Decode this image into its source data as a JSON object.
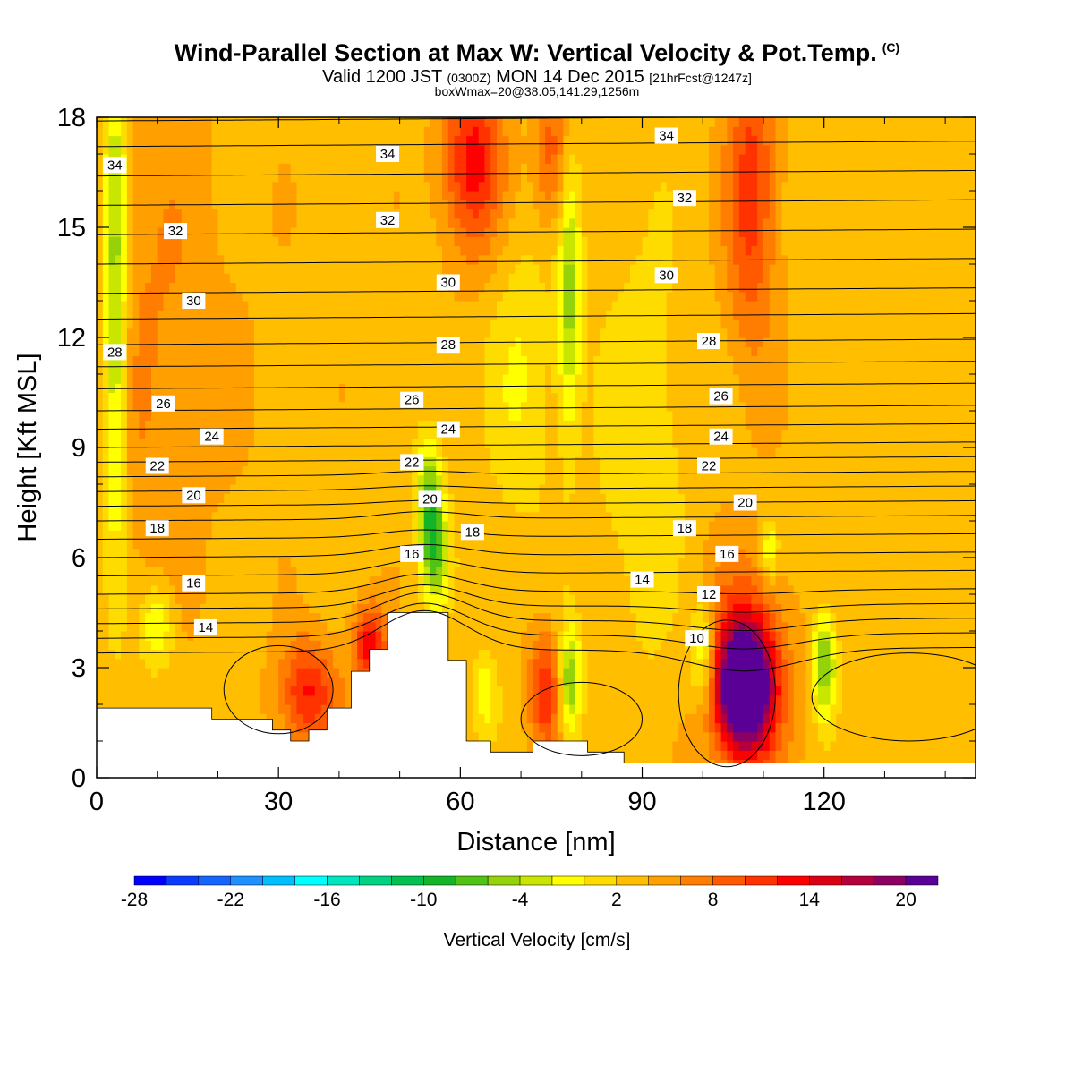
{
  "header": {
    "title": "Wind-Parallel Section at Max W: Vertical Velocity & Pot.Temp.",
    "copyright": "(C)",
    "valid_prefix": "Valid 1200 JST",
    "valid_utc": "(0300Z)",
    "valid_date": "MON 14 Dec 2015",
    "forecast": "[21hrFcst@1247z]",
    "box_info": "boxWmax=20@38.05,141.29,1256m"
  },
  "chart_data": {
    "type": "heatmap",
    "xlabel": "Distance [nm]",
    "ylabel": "Height [Kft MSL]",
    "xlim": [
      0,
      145
    ],
    "ylim": [
      0,
      18
    ],
    "x_ticks": [
      "0",
      "30",
      "60",
      "90",
      "120"
    ],
    "y_ticks": [
      "0",
      "3",
      "6",
      "9",
      "12",
      "15",
      "18"
    ],
    "colorbar": {
      "label": "Vertical Velocity [cm/s]",
      "range": [
        -28,
        22
      ],
      "step": 2,
      "tick_labels": [
        "-28",
        "-22",
        "-16",
        "-10",
        "-4",
        "2",
        "8",
        "14",
        "20"
      ],
      "colors": [
        "#0000ff",
        "#0a3cff",
        "#1464ff",
        "#1e90ff",
        "#00bfff",
        "#00ffff",
        "#00e6be",
        "#00d282",
        "#00c050",
        "#14b428",
        "#50c314",
        "#96d20a",
        "#c8e600",
        "#ffff00",
        "#ffdc00",
        "#ffbe00",
        "#ffa000",
        "#ff7d00",
        "#ff5a00",
        "#ff3200",
        "#ff0000",
        "#dc0014",
        "#b4003c",
        "#8c0064",
        "#5a0096"
      ]
    },
    "terrain_kft": [
      [
        0,
        1.9
      ],
      [
        19,
        1.9
      ],
      [
        19,
        1.6
      ],
      [
        29,
        1.6
      ],
      [
        29,
        1.3
      ],
      [
        32,
        1.3
      ],
      [
        32,
        1.0
      ],
      [
        35,
        1.0
      ],
      [
        35,
        1.3
      ],
      [
        38,
        1.3
      ],
      [
        38,
        1.9
      ],
      [
        42,
        1.9
      ],
      [
        42,
        2.9
      ],
      [
        45,
        2.9
      ],
      [
        45,
        3.5
      ],
      [
        48,
        3.5
      ],
      [
        48,
        4.5
      ],
      [
        58,
        4.5
      ],
      [
        58,
        3.2
      ],
      [
        61,
        3.2
      ],
      [
        61,
        1.0
      ],
      [
        65,
        1.0
      ],
      [
        65,
        0.7
      ],
      [
        72,
        0.7
      ],
      [
        72,
        1.0
      ],
      [
        81,
        1.0
      ],
      [
        81,
        0.7
      ],
      [
        87,
        0.7
      ],
      [
        87,
        0.4
      ],
      [
        145,
        0.4
      ]
    ],
    "w_features": [
      {
        "x": 107,
        "z": 2.5,
        "sx": 3,
        "sz": 1.1,
        "w": 24
      },
      {
        "x": 107,
        "z": 2.8,
        "sx": 5,
        "sz": 2.2,
        "w": 8
      },
      {
        "x": 62,
        "z": 16.8,
        "sx": 3.5,
        "sz": 1.8,
        "w": 10
      },
      {
        "x": 108,
        "z": 16,
        "sx": 3,
        "sz": 3,
        "w": 8
      },
      {
        "x": 35,
        "z": 2.3,
        "sx": 3.5,
        "sz": 1,
        "w": 9
      },
      {
        "x": 45,
        "z": 3.6,
        "sx": 2,
        "sz": 0.8,
        "w": 10
      },
      {
        "x": 74,
        "z": 2.4,
        "sx": 2,
        "sz": 1.1,
        "w": 9
      },
      {
        "x": 75,
        "z": 17,
        "sx": 2,
        "sz": 1.5,
        "w": 6
      },
      {
        "x": 8,
        "z": 12,
        "sx": 10,
        "sz": 5,
        "w": 3
      },
      {
        "x": 3,
        "z": 13,
        "sx": 1.5,
        "sz": 5,
        "w": -10
      },
      {
        "x": 55,
        "z": 7.5,
        "sx": 1.5,
        "sz": 1.2,
        "w": -10
      },
      {
        "x": 56,
        "z": 6,
        "sx": 1.5,
        "sz": 1,
        "w": -7
      },
      {
        "x": 78,
        "z": 13,
        "sx": 1.3,
        "sz": 2.5,
        "w": -8
      },
      {
        "x": 78,
        "z": 2.6,
        "sx": 1.3,
        "sz": 1,
        "w": -10
      },
      {
        "x": 100,
        "z": 3.4,
        "sx": 1.6,
        "sz": 1,
        "w": -7
      },
      {
        "x": 120,
        "z": 3.1,
        "sx": 1.4,
        "sz": 1,
        "w": -10
      },
      {
        "x": 10,
        "z": 4.1,
        "sx": 2,
        "sz": 0.8,
        "w": -6
      },
      {
        "x": 111,
        "z": 6.2,
        "sx": 1,
        "sz": 0.6,
        "w": -6
      },
      {
        "x": 64,
        "z": 2.3,
        "sx": 1.5,
        "sz": 0.7,
        "w": -5
      },
      {
        "x": 90,
        "z": 9,
        "sx": 5,
        "sz": 4,
        "w": -3
      },
      {
        "x": 70,
        "z": 11,
        "sx": 4,
        "sz": 3,
        "w": -3
      }
    ],
    "isotherms": [
      {
        "z0": 3.4,
        "ridge": 4.5,
        "dip": -0.6
      },
      {
        "z0": 3.8,
        "ridge": 4.7,
        "dip": -0.4
      },
      {
        "z0": 4.2,
        "ridge": 5.0,
        "dip": -0.3
      },
      {
        "z0": 4.6,
        "ridge": 5.2,
        "dip": -0.2
      },
      {
        "z0": 5.0,
        "ridge": 5.5,
        "dip": -0.1
      },
      {
        "z0": 5.5,
        "ridge": 5.9,
        "dip": 0
      },
      {
        "z0": 6.0,
        "ridge": 6.3,
        "dip": 0
      },
      {
        "z0": 6.5,
        "ridge": 6.7,
        "dip": 0
      },
      {
        "z0": 7.0,
        "ridge": 7.2,
        "dip": 0
      },
      {
        "z0": 7.4,
        "ridge": 7.5,
        "dip": 0
      },
      {
        "z0": 7.8,
        "ridge": 7.9,
        "dip": 0
      },
      {
        "z0": 8.2,
        "ridge": 8.3,
        "dip": 0
      },
      {
        "z0": 8.6,
        "ridge": 8.6,
        "dip": 0
      },
      {
        "z0": 9.0,
        "ridge": 9.0,
        "dip": 0
      },
      {
        "z0": 9.5,
        "ridge": 9.5,
        "dip": 0
      },
      {
        "z0": 10.0,
        "ridge": 10.0,
        "dip": 0
      },
      {
        "z0": 10.6,
        "ridge": 10.6,
        "dip": 0
      },
      {
        "z0": 11.2,
        "ridge": 11.2,
        "dip": 0
      },
      {
        "z0": 11.8,
        "ridge": 11.8,
        "dip": 0
      },
      {
        "z0": 12.5,
        "ridge": 12.5,
        "dip": 0
      },
      {
        "z0": 13.2,
        "ridge": 13.2,
        "dip": 0
      },
      {
        "z0": 14.0,
        "ridge": 14.0,
        "dip": 0
      },
      {
        "z0": 14.8,
        "ridge": 14.8,
        "dip": 0
      },
      {
        "z0": 15.6,
        "ridge": 15.6,
        "dip": 0
      },
      {
        "z0": 16.4,
        "ridge": 16.4,
        "dip": 0
      },
      {
        "z0": 17.2,
        "ridge": 17.2,
        "dip": 0
      },
      {
        "z0": 17.9,
        "ridge": 17.9,
        "dip": 0
      }
    ],
    "contour_labels": [
      {
        "text": "34",
        "x": 3,
        "z": 16.7
      },
      {
        "text": "34",
        "x": 48,
        "z": 17.0
      },
      {
        "text": "34",
        "x": 94,
        "z": 17.5
      },
      {
        "text": "32",
        "x": 13,
        "z": 14.9
      },
      {
        "text": "32",
        "x": 48,
        "z": 15.2
      },
      {
        "text": "32",
        "x": 97,
        "z": 15.8
      },
      {
        "text": "30",
        "x": 16,
        "z": 13.0
      },
      {
        "text": "30",
        "x": 58,
        "z": 13.5
      },
      {
        "text": "30",
        "x": 94,
        "z": 13.7
      },
      {
        "text": "28",
        "x": 3,
        "z": 11.6
      },
      {
        "text": "28",
        "x": 58,
        "z": 11.8
      },
      {
        "text": "28",
        "x": 101,
        "z": 11.9
      },
      {
        "text": "26",
        "x": 11,
        "z": 10.2
      },
      {
        "text": "26",
        "x": 52,
        "z": 10.3
      },
      {
        "text": "26",
        "x": 103,
        "z": 10.4
      },
      {
        "text": "24",
        "x": 19,
        "z": 9.3
      },
      {
        "text": "24",
        "x": 58,
        "z": 9.5
      },
      {
        "text": "24",
        "x": 103,
        "z": 9.3
      },
      {
        "text": "22",
        "x": 10,
        "z": 8.5
      },
      {
        "text": "22",
        "x": 52,
        "z": 8.6
      },
      {
        "text": "22",
        "x": 101,
        "z": 8.5
      },
      {
        "text": "20",
        "x": 16,
        "z": 7.7
      },
      {
        "text": "20",
        "x": 55,
        "z": 7.6
      },
      {
        "text": "20",
        "x": 107,
        "z": 7.5
      },
      {
        "text": "18",
        "x": 10,
        "z": 6.8
      },
      {
        "text": "18",
        "x": 62,
        "z": 6.7
      },
      {
        "text": "18",
        "x": 97,
        "z": 6.8
      },
      {
        "text": "16",
        "x": 16,
        "z": 5.3
      },
      {
        "text": "16",
        "x": 52,
        "z": 6.1
      },
      {
        "text": "16",
        "x": 104,
        "z": 6.1
      },
      {
        "text": "14",
        "x": 18,
        "z": 4.1
      },
      {
        "text": "14",
        "x": 90,
        "z": 5.4
      },
      {
        "text": "12",
        "x": 101,
        "z": 5.0
      },
      {
        "text": "10",
        "x": 99,
        "z": 3.8
      }
    ]
  }
}
